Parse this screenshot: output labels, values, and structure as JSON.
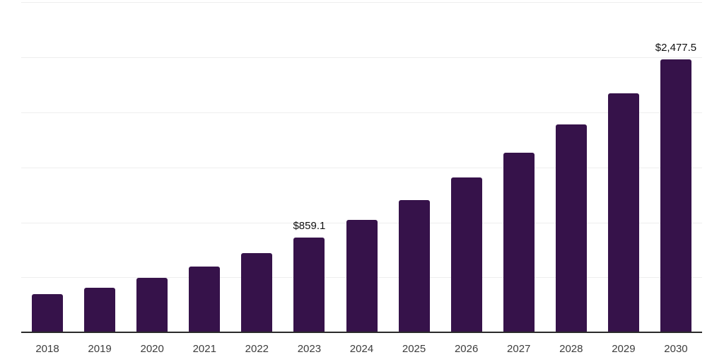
{
  "chart_data": {
    "type": "bar",
    "title": "",
    "xlabel": "",
    "ylabel": "",
    "categories": [
      "2018",
      "2019",
      "2020",
      "2021",
      "2022",
      "2023",
      "2024",
      "2025",
      "2026",
      "2027",
      "2028",
      "2029",
      "2030"
    ],
    "values": [
      348,
      406,
      496,
      599,
      721,
      859.1,
      1024,
      1204,
      1404,
      1629,
      1887,
      2170,
      2477.5
    ],
    "annotations": [
      {
        "category": "2023",
        "text": "$859.1"
      },
      {
        "category": "2030",
        "text": "$2,477.5"
      }
    ],
    "ylim": [
      0,
      3000
    ],
    "gridline_step": 500,
    "grid": "horizontal-only",
    "legend": "none",
    "y_tick_labels_visible": false,
    "colors": {
      "bar": "#36124a",
      "gridline": "#eeeeee",
      "axis_line": "#2b2b2b",
      "tick_label": "#3d3d3d",
      "data_label": "#101010",
      "background": "#ffffff"
    }
  }
}
